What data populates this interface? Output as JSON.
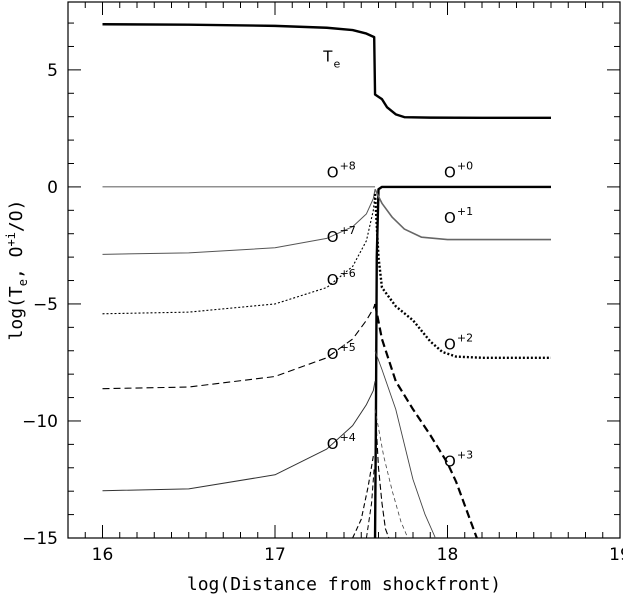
{
  "chart_data": {
    "type": "line",
    "xlabel": "log(Distance from shockfront)",
    "ylabel": "log(T_e, O^+i/O)",
    "xlim": [
      15.8,
      19.0
    ],
    "ylim": [
      -15,
      7.9
    ],
    "x_ticks": [
      {
        "value": 16,
        "label": "16"
      },
      {
        "value": 17,
        "label": "17"
      },
      {
        "value": 18,
        "label": "18"
      },
      {
        "value": 19,
        "label": "19"
      }
    ],
    "y_ticks": [
      {
        "value": 5,
        "label": "5"
      },
      {
        "value": 0,
        "label": "0"
      },
      {
        "value": -5,
        "label": "−5"
      },
      {
        "value": -10,
        "label": "−10"
      },
      {
        "value": -15,
        "label": "−15"
      }
    ],
    "series": [
      {
        "name": "T_e",
        "color": "#000000",
        "dash": "",
        "width": 2.4,
        "points": [
          [
            16.0,
            6.95
          ],
          [
            16.5,
            6.93
          ],
          [
            17.0,
            6.88
          ],
          [
            17.3,
            6.8
          ],
          [
            17.45,
            6.7
          ],
          [
            17.53,
            6.55
          ],
          [
            17.575,
            6.4
          ],
          [
            17.58,
            3.95
          ],
          [
            17.62,
            3.75
          ],
          [
            17.65,
            3.4
          ],
          [
            17.7,
            3.1
          ],
          [
            17.75,
            2.98
          ],
          [
            17.9,
            2.96
          ],
          [
            18.2,
            2.95
          ],
          [
            18.6,
            2.95
          ]
        ]
      },
      {
        "name": "O+8",
        "color": "#222222",
        "dash": "",
        "width": 0.8,
        "points": [
          [
            16.0,
            0.0
          ],
          [
            17.0,
            0.0
          ],
          [
            17.5,
            0.0
          ],
          [
            17.58,
            0.0
          ]
        ]
      },
      {
        "name": "O+0",
        "color": "#000000",
        "dash": "",
        "width": 2.4,
        "points": [
          [
            17.58,
            -15.0
          ],
          [
            17.585,
            -10.0
          ],
          [
            17.59,
            -3.0
          ],
          [
            17.6,
            -0.1
          ],
          [
            17.62,
            0.0
          ],
          [
            18.0,
            0.0
          ],
          [
            18.6,
            0.0
          ]
        ]
      },
      {
        "name": "O+7",
        "color": "#555555",
        "dash": "",
        "width": 1.0,
        "points": [
          [
            16.0,
            -2.88
          ],
          [
            16.5,
            -2.82
          ],
          [
            17.0,
            -2.6
          ],
          [
            17.3,
            -2.2
          ],
          [
            17.45,
            -1.7
          ],
          [
            17.53,
            -1.15
          ],
          [
            17.57,
            -0.5
          ],
          [
            17.58,
            -0.1
          ]
        ]
      },
      {
        "name": "O+1",
        "color": "#666666",
        "dash": "",
        "width": 1.6,
        "points": [
          [
            17.58,
            -0.1
          ],
          [
            17.62,
            -0.7
          ],
          [
            17.68,
            -1.3
          ],
          [
            17.75,
            -1.8
          ],
          [
            17.85,
            -2.15
          ],
          [
            18.0,
            -2.25
          ],
          [
            18.6,
            -2.25
          ]
        ]
      },
      {
        "name": "O+6",
        "color": "#000000",
        "dash": "2,2",
        "width": 1.1,
        "points": [
          [
            16.0,
            -5.42
          ],
          [
            16.5,
            -5.35
          ],
          [
            17.0,
            -5.0
          ],
          [
            17.3,
            -4.3
          ],
          [
            17.45,
            -3.4
          ],
          [
            17.53,
            -2.3
          ],
          [
            17.57,
            -1.0
          ],
          [
            17.58,
            -0.3
          ]
        ]
      },
      {
        "name": "O+2",
        "color": "#000000",
        "dash": "2,2",
        "width": 2.4,
        "points": [
          [
            17.58,
            -0.3
          ],
          [
            17.6,
            -3.0
          ],
          [
            17.62,
            -4.3
          ],
          [
            17.7,
            -5.1
          ],
          [
            17.8,
            -5.7
          ],
          [
            17.9,
            -6.6
          ],
          [
            17.97,
            -7.05
          ],
          [
            18.05,
            -7.25
          ],
          [
            18.2,
            -7.3
          ],
          [
            18.6,
            -7.3
          ]
        ]
      },
      {
        "name": "O+5",
        "color": "#000000",
        "dash": "7,4",
        "width": 1.1,
        "points": [
          [
            16.0,
            -8.62
          ],
          [
            16.5,
            -8.55
          ],
          [
            17.0,
            -8.1
          ],
          [
            17.3,
            -7.3
          ],
          [
            17.45,
            -6.5
          ],
          [
            17.53,
            -5.7
          ],
          [
            17.57,
            -5.2
          ],
          [
            17.58,
            -5.0
          ]
        ]
      },
      {
        "name": "O+3",
        "color": "#000000",
        "dash": "8,4",
        "width": 2.2,
        "points": [
          [
            17.58,
            -5.0
          ],
          [
            17.62,
            -6.5
          ],
          [
            17.7,
            -8.3
          ],
          [
            17.8,
            -9.5
          ],
          [
            17.9,
            -10.6
          ],
          [
            18.0,
            -11.8
          ],
          [
            18.05,
            -12.6
          ],
          [
            18.1,
            -13.6
          ],
          [
            18.15,
            -14.6
          ],
          [
            18.17,
            -15.0
          ]
        ]
      },
      {
        "name": "O+4",
        "color": "#333333",
        "dash": "",
        "width": 1.0,
        "points": [
          [
            16.0,
            -12.98
          ],
          [
            16.5,
            -12.9
          ],
          [
            17.0,
            -12.3
          ],
          [
            17.3,
            -11.2
          ],
          [
            17.45,
            -10.2
          ],
          [
            17.53,
            -9.3
          ],
          [
            17.57,
            -8.7
          ],
          [
            17.58,
            -8.3
          ]
        ]
      },
      {
        "name": "",
        "color": "#444444",
        "dash": "",
        "width": 0.9,
        "points": [
          [
            17.58,
            -7.0
          ],
          [
            17.62,
            -7.8
          ],
          [
            17.7,
            -9.5
          ],
          [
            17.75,
            -11.0
          ],
          [
            17.8,
            -12.5
          ],
          [
            17.87,
            -14.0
          ],
          [
            17.93,
            -15.0
          ]
        ]
      },
      {
        "name": "",
        "color": "#444444",
        "dash": "4,3",
        "width": 0.8,
        "points": [
          [
            17.58,
            -9.5
          ],
          [
            17.63,
            -11.5
          ],
          [
            17.68,
            -13.0
          ],
          [
            17.73,
            -14.3
          ],
          [
            17.77,
            -15.0
          ]
        ]
      },
      {
        "name": "",
        "color": "#000000",
        "dash": "6,3",
        "width": 1.1,
        "points": [
          [
            17.585,
            -10.0
          ],
          [
            17.6,
            -12.0
          ],
          [
            17.62,
            -13.5
          ],
          [
            17.64,
            -14.6
          ],
          [
            17.66,
            -15.0
          ]
        ]
      },
      {
        "name": "",
        "color": "#000000",
        "dash": "5,3",
        "width": 1.1,
        "points": [
          [
            17.45,
            -15.0
          ],
          [
            17.5,
            -14.2
          ],
          [
            17.54,
            -12.8
          ],
          [
            17.57,
            -11.5
          ]
        ]
      },
      {
        "name": "",
        "color": "#000000",
        "dash": "5,3",
        "width": 1.0,
        "points": [
          [
            17.53,
            -15.0
          ],
          [
            17.56,
            -13.5
          ],
          [
            17.575,
            -12.0
          ]
        ]
      }
    ],
    "annotations": [
      {
        "base": "T",
        "sub": "e",
        "sup": "",
        "x": 17.28,
        "y": 5.35
      },
      {
        "base": "O",
        "sub": "",
        "sup": "+8",
        "x": 17.3,
        "y": 0.4
      },
      {
        "base": "O",
        "sub": "",
        "sup": "+0",
        "x": 17.98,
        "y": 0.4
      },
      {
        "base": "O",
        "sub": "",
        "sup": "+7",
        "x": 17.3,
        "y": -2.35
      },
      {
        "base": "O",
        "sub": "",
        "sup": "+1",
        "x": 17.98,
        "y": -1.55
      },
      {
        "base": "O",
        "sub": "",
        "sup": "+6",
        "x": 17.3,
        "y": -4.2
      },
      {
        "base": "O",
        "sub": "",
        "sup": "+2",
        "x": 17.98,
        "y": -6.95
      },
      {
        "base": "O",
        "sub": "",
        "sup": "+5",
        "x": 17.3,
        "y": -7.35
      },
      {
        "base": "O",
        "sub": "",
        "sup": "+4",
        "x": 17.3,
        "y": -11.2
      },
      {
        "base": "O",
        "sub": "",
        "sup": "+3",
        "x": 17.98,
        "y": -11.95
      }
    ]
  }
}
